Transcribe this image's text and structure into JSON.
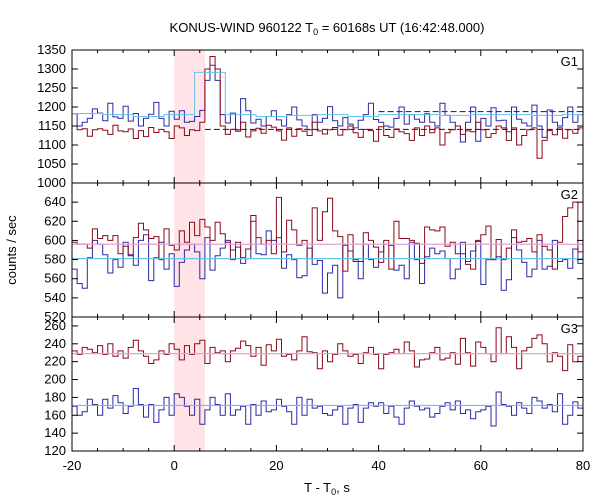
{
  "chart_data": {
    "type": "line",
    "title_main": "KONUS-WIND 960122 T",
    "title_sub": "0",
    "title_rest": " = 60168s UT (16:42:48.000)",
    "xlabel_main": "T - T",
    "xlabel_sub": "0",
    "xlabel_rest": ", s",
    "ylabel": "counts / sec",
    "xlim": [
      -20,
      80
    ],
    "x_ticks": [
      "-20",
      "0",
      "20",
      "40",
      "60",
      "80"
    ],
    "highlight_interval": [
      0,
      6
    ],
    "grid": false,
    "colors": {
      "red": "#8b0a1a",
      "blue": "#2a2aa8",
      "light_blue": "#66c2ee",
      "pink": "#e0a0d8",
      "highlight": "#ffe3e6",
      "axis": "#000000"
    },
    "panels": [
      {
        "label": "G1",
        "ylim": [
          1000,
          1350
        ],
        "y_ticks": [
          "1000",
          "1050",
          "1100",
          "1150",
          "1200",
          "1250",
          "1300",
          "1350"
        ],
        "series": [
          {
            "color": "blue",
            "x_start": -20,
            "bin": 1,
            "values": [
              1182,
              1150,
              1160,
              1170,
              1195,
              1184,
              1164,
              1210,
              1174,
              1170,
              1202,
              1163,
              1183,
              1150,
              1170,
              1181,
              1212,
              1170,
              1150,
              1189,
              1168,
              1190,
              1160,
              1162,
              1175,
              1191,
              1270,
              1310,
              1270,
              1180,
              1158,
              1184,
              1140,
              1222,
              1190,
              1158,
              1168,
              1150,
              1175,
              1190,
              1166,
              1150,
              1180,
              1200,
              1166,
              1150,
              1140,
              1180,
              1160,
              1170,
              1201,
              1164,
              1150,
              1172,
              1155,
              1145,
              1165,
              1180,
              1210,
              1167,
              1160,
              1150,
              1147,
              1170,
              1200,
              1155,
              1180,
              1168,
              1160,
              1182,
              1160,
              1150,
              1210,
              1178,
              1160,
              1150,
              1108,
              1160,
              1200,
              1110,
              1170,
              1150,
              1198,
              1164,
              1165,
              1135,
              1200,
              1168,
              1158,
              1150,
              1205,
              1150,
              1120,
              1192,
              1160,
              1150,
              1172,
              1200,
              1160,
              1180
            ]
          },
          {
            "color": "red",
            "x_start": -20,
            "bin": 1,
            "values": [
              1150,
              1140,
              1143,
              1123,
              1140,
              1143,
              1139,
              1128,
              1152,
              1137,
              1135,
              1142,
              1117,
              1138,
              1122,
              1146,
              1133,
              1141,
              1135,
              1117,
              1150,
              1145,
              1125,
              1140,
              1138,
              1160,
              1300,
              1333,
              1300,
              1150,
              1128,
              1141,
              1136,
              1160,
              1121,
              1137,
              1144,
              1131,
              1152,
              1147,
              1137,
              1113,
              1145,
              1123,
              1143,
              1136,
              1125,
              1160,
              1137,
              1129,
              1140,
              1146,
              1126,
              1140,
              1150,
              1132,
              1120,
              1141,
              1138,
              1110,
              1148,
              1125,
              1120,
              1142,
              1135,
              1130,
              1112,
              1145,
              1125,
              1150,
              1132,
              1145,
              1100,
              1132,
              1140,
              1150,
              1128,
              1137,
              1135,
              1160,
              1140,
              1120,
              1130,
              1150,
              1145,
              1112,
              1145,
              1100,
              1125,
              1140,
              1145,
              1065,
              1112,
              1138,
              1127,
              1145,
              1118,
              1140,
              1131,
              1145
            ]
          },
          {
            "color": "light_blue",
            "x_start": -20,
            "bin": 6,
            "values": [
              1183,
              1180,
              1175,
              1180,
              1291,
              1180,
              1175,
              1178,
              1180,
              1175,
              1180,
              1180,
              1178,
              1180,
              1180,
              1178,
              1180
            ]
          },
          {
            "color": "blue",
            "style": "dashed",
            "level": 1188,
            "x_from": 40,
            "x_to": 80
          },
          {
            "color": "red",
            "style": "dashed",
            "level": 1141,
            "x_from": 6,
            "x_to": 80
          }
        ]
      },
      {
        "label": "G2",
        "ylim": [
          520,
          660
        ],
        "y_ticks": [
          "520",
          "540",
          "560",
          "580",
          "600",
          "620",
          "640"
        ],
        "series": [
          {
            "color": "blue",
            "x_start": -20,
            "bin": 1,
            "values": [
              570,
              555,
              550,
              582,
              600,
              596,
              585,
              566,
              580,
              572,
              598,
              585,
              574,
              600,
              606,
              558,
              582,
              598,
              570,
              586,
              552,
              577,
              590,
              596,
              588,
              560,
              603,
              569,
              584,
              592,
              600,
              590,
              593,
              576,
              581,
              620,
              586,
              585,
              610,
              600,
              603,
              571,
              585,
              580,
              561,
              563,
              592,
              575,
              579,
              545,
              566,
              574,
              540,
              595,
              589,
              580,
              560,
              596,
              580,
              572,
              588,
              596,
              595,
              569,
              574,
              560,
              598,
              580,
              555,
              583,
              592,
              586,
              589,
              581,
              560,
              570,
              598,
              578,
              589,
              599,
              554,
              580,
              580,
              583,
              548,
              559,
              603,
              590,
              577,
              562,
              570,
              600,
              570,
              573,
              600,
              578,
              580,
              571,
              591,
              576
            ]
          },
          {
            "color": "red",
            "x_start": -20,
            "bin": 1,
            "values": [
              598,
              596,
              596,
              592,
              612,
              602,
              605,
              600,
              605,
              586,
              594,
              584,
              603,
              618,
              611,
              602,
              604,
              580,
              612,
              595,
              590,
              610,
              598,
              619,
              605,
              622,
              614,
              600,
              619,
              607,
              598,
              580,
              598,
              582,
              591,
              626,
              603,
              596,
              600,
              586,
              645,
              588,
              621,
              611,
              595,
              600,
              581,
              634,
              600,
              630,
              644,
              610,
              604,
              568,
              606,
              578,
              578,
              608,
              600,
              593,
              577,
              600,
              570,
              620,
              602,
              602,
              600,
              597,
              576,
              614,
              611,
              610,
              614,
              594,
              598,
              586,
              586,
              575,
              570,
              600,
              606,
              615,
              580,
              601,
              580,
              592,
              611,
              598,
              599,
              602,
              588,
              606,
              594,
              590,
              570,
              598,
              625,
              634,
              640,
              588
            ]
          },
          {
            "color": "light_blue",
            "level": 581,
            "x_from": -20,
            "x_to": 80
          },
          {
            "color": "pink",
            "level": 596,
            "x_from": -20,
            "x_to": 80
          }
        ]
      },
      {
        "label": "G3",
        "ylim": [
          120,
          270
        ],
        "y_ticks": [
          "120",
          "140",
          "160",
          "180",
          "200",
          "220",
          "240",
          "260"
        ],
        "series": [
          {
            "color": "red",
            "x_start": -20,
            "bin": 1,
            "values": [
              232,
              228,
              236,
              234,
              230,
              238,
              228,
              240,
              226,
              232,
              224,
              236,
              244,
              232,
              226,
              218,
              222,
              232,
              228,
              240,
              234,
              222,
              238,
              228,
              240,
              244,
              218,
              236,
              230,
              232,
              220,
              232,
              235,
              243,
              238,
              226,
              236,
              216,
              239,
              232,
              245,
              226,
              228,
              222,
              232,
              248,
              231,
              230,
              212,
              232,
              220,
              228,
              240,
              232,
              226,
              228,
              218,
              230,
              236,
              228,
              212,
              228,
              230,
              234,
              229,
              242,
              232,
              214,
              222,
              223,
              230,
              236,
              222,
              224,
              230,
              217,
              246,
              230,
              215,
              242,
              236,
              229,
              220,
              258,
              229,
              248,
              236,
              212,
              232,
              236,
              246,
              250,
              240,
              220,
              230,
              226,
              210,
              239,
              220,
              226
            ]
          },
          {
            "color": "blue",
            "x_start": -20,
            "bin": 1,
            "values": [
              170,
              160,
              164,
              178,
              172,
              160,
              178,
              168,
              182,
              174,
              162,
              170,
              190,
              172,
              158,
              172,
              152,
              166,
              180,
              160,
              184,
              180,
              170,
              160,
              178,
              150,
              166,
              180,
              172,
              160,
              184,
              160,
              166,
              170,
              150,
              172,
              160,
              176,
              164,
              166,
              178,
              170,
              164,
              150,
              180,
              160,
              178,
              168,
              170,
              162,
              160,
              166,
              170,
              150,
              168,
              172,
              152,
              168,
              174,
              170,
              174,
              162,
              170,
              158,
              150,
              168,
              176,
              170,
              166,
              168,
              158,
              162,
              170,
              174,
              166,
              176,
              162,
              166,
              156,
              164,
              166,
              170,
              148,
              186,
              172,
              170,
              160,
              174,
              168,
              162,
              180,
              176,
              168,
              172,
              164,
              184,
              150,
              160,
              175,
              168
            ]
          },
          {
            "color": "pink",
            "level": 229,
            "x_from": -20,
            "x_to": 80
          },
          {
            "color": "light_blue",
            "level": 171,
            "x_from": -20,
            "x_to": 80
          }
        ]
      }
    ]
  }
}
